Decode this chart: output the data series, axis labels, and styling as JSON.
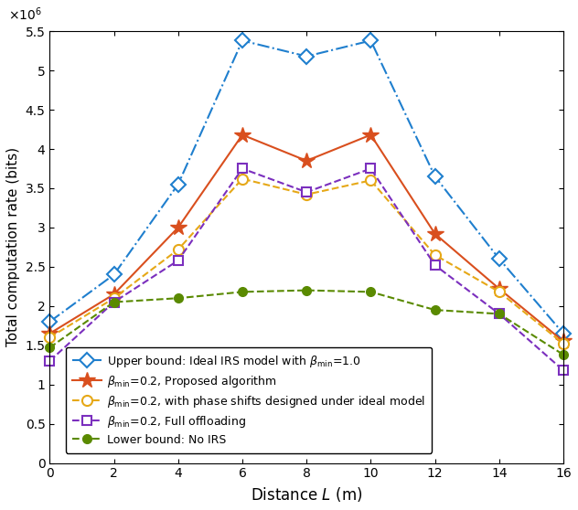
{
  "x": [
    0,
    2,
    4,
    6,
    8,
    10,
    12,
    14,
    16
  ],
  "series": [
    {
      "label": "Upper bound: Ideal IRS model with $\\beta_{\\min}$=1.0",
      "values": [
        1800000.0,
        2400000.0,
        3550000.0,
        5380000.0,
        5180000.0,
        5380000.0,
        3650000.0,
        2600000.0,
        1650000.0
      ],
      "color": "#1f7fce",
      "linestyle": "-.",
      "marker": "D",
      "markersize": 8,
      "linewidth": 1.5,
      "markerfacecolor": "white",
      "markeredgecolor": "#1f7fce",
      "markeredgewidth": 1.5
    },
    {
      "label": "$\\beta_{\\min}$=0.2, Proposed algorithm",
      "values": [
        1650000.0,
        2150000.0,
        3000000.0,
        4180000.0,
        3850000.0,
        4180000.0,
        2920000.0,
        2220000.0,
        1550000.0
      ],
      "color": "#d94f1e",
      "linestyle": "-",
      "marker": "*",
      "markersize": 13,
      "linewidth": 1.5,
      "markerfacecolor": "#d94f1e",
      "markeredgecolor": "#d94f1e",
      "markeredgewidth": 1.0
    },
    {
      "label": "$\\beta_{\\min}$=0.2, with phase shifts designed under ideal model",
      "values": [
        1600000.0,
        2100000.0,
        2720000.0,
        3620000.0,
        3420000.0,
        3600000.0,
        2650000.0,
        2180000.0,
        1520000.0
      ],
      "color": "#e6a817",
      "linestyle": "--",
      "marker": "o",
      "markersize": 8,
      "linewidth": 1.5,
      "markerfacecolor": "white",
      "markeredgecolor": "#e6a817",
      "markeredgewidth": 1.5
    },
    {
      "label": "$\\beta_{\\min}$=0.2, Full offloading",
      "values": [
        1300000.0,
        2050000.0,
        2580000.0,
        3750000.0,
        3450000.0,
        3750000.0,
        2520000.0,
        1900000.0,
        1180000.0
      ],
      "color": "#7b2fbe",
      "linestyle": "--",
      "marker": "s",
      "markersize": 7,
      "linewidth": 1.5,
      "markerfacecolor": "white",
      "markeredgecolor": "#7b2fbe",
      "markeredgewidth": 1.5
    },
    {
      "label": "Lower bound: No IRS",
      "values": [
        1470000.0,
        2050000.0,
        2100000.0,
        2180000.0,
        2200000.0,
        2180000.0,
        1950000.0,
        1900000.0,
        1380000.0
      ],
      "color": "#5a8a00",
      "linestyle": "--",
      "marker": "o",
      "markersize": 7,
      "linewidth": 1.5,
      "markerfacecolor": "#5a8a00",
      "markeredgecolor": "#5a8a00",
      "markeredgewidth": 1.0
    }
  ],
  "xlabel": "Distance $L$ (m)",
  "ylabel": "Total computation rate (bits)",
  "ylim": [
    0,
    5500000.0
  ],
  "xlim": [
    0,
    16
  ],
  "xticks": [
    0,
    2,
    4,
    6,
    8,
    10,
    12,
    14,
    16
  ],
  "yticks": [
    0,
    500000.0,
    1000000.0,
    1500000.0,
    2000000.0,
    2500000.0,
    3000000.0,
    3500000.0,
    4000000.0,
    4500000.0,
    5000000.0,
    5500000.0
  ],
  "ytick_labels": [
    "0",
    "0.5",
    "1",
    "1.5",
    "2",
    "2.5",
    "3",
    "3.5",
    "4",
    "4.5",
    "5",
    "5.5"
  ],
  "figsize": [
    6.32,
    5.58
  ],
  "dpi": 100
}
